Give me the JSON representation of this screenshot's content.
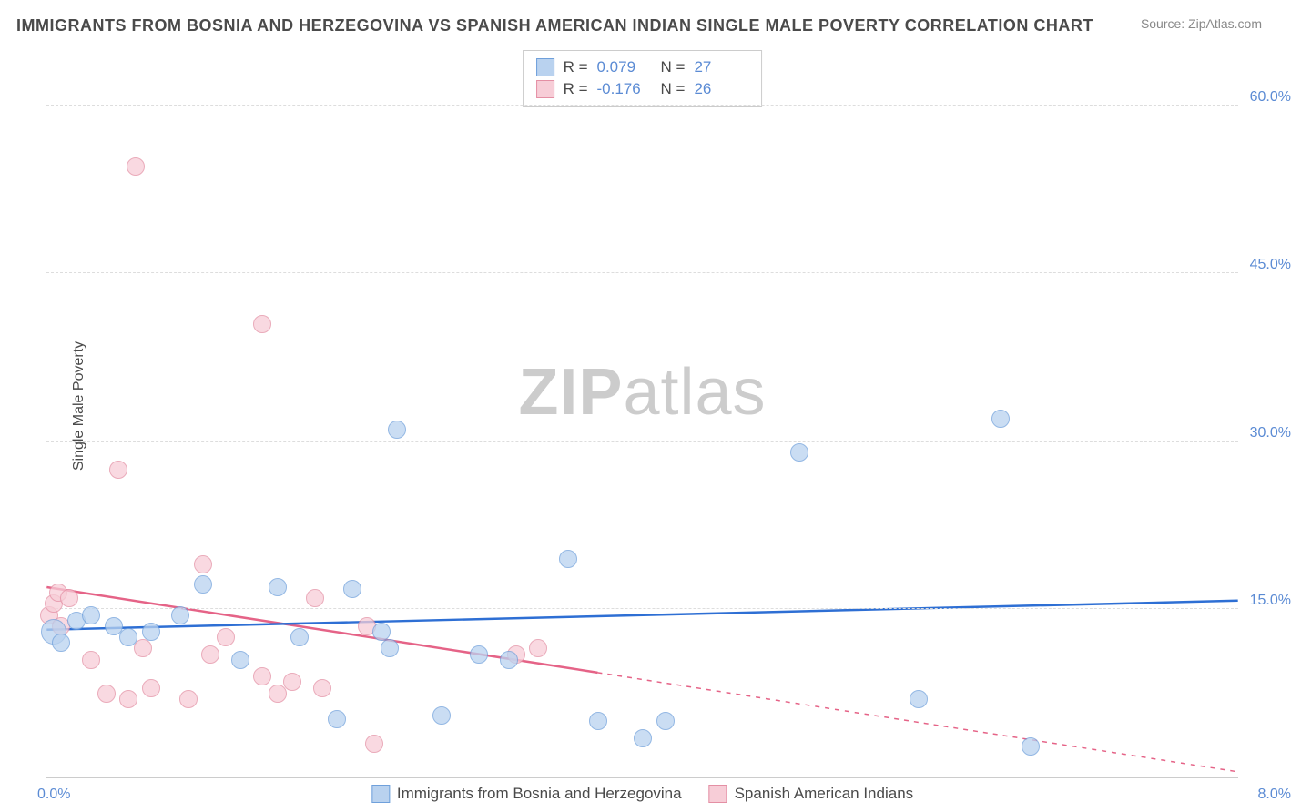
{
  "title": "IMMIGRANTS FROM BOSNIA AND HERZEGOVINA VS SPANISH AMERICAN INDIAN SINGLE MALE POVERTY CORRELATION CHART",
  "source": "Source: ZipAtlas.com",
  "watermark_bold": "ZIP",
  "watermark_light": "atlas",
  "y_axis_title": "Single Male Poverty",
  "colors": {
    "series_a_fill": "#b9d2ef",
    "series_a_stroke": "#6fa0db",
    "series_a_line": "#2e6fd4",
    "series_b_fill": "#f7cdd7",
    "series_b_stroke": "#e48fa4",
    "series_b_line": "#e56387",
    "grid": "#dddddd",
    "axis": "#cccccc",
    "tick_text": "#5b8bd4",
    "title_text": "#4a4a4a"
  },
  "chart": {
    "type": "scatter",
    "xlim": [
      0.0,
      8.0
    ],
    "ylim": [
      0.0,
      65.0
    ],
    "yticks": [
      {
        "v": 15.0,
        "label": "15.0%"
      },
      {
        "v": 30.0,
        "label": "30.0%"
      },
      {
        "v": 45.0,
        "label": "45.0%"
      },
      {
        "v": 60.0,
        "label": "60.0%"
      }
    ],
    "xticks": [
      {
        "v": 0.0,
        "label": "0.0%"
      },
      {
        "v": 8.0,
        "label": "8.0%"
      }
    ],
    "point_radius": 10,
    "point_opacity": 0.75,
    "line_width": 2.5,
    "title_fontsize": 18,
    "tick_fontsize": 16
  },
  "stats": {
    "a": {
      "R_label": "R =",
      "R": "0.079",
      "N_label": "N =",
      "N": "27"
    },
    "b": {
      "R_label": "R =",
      "R": "-0.176",
      "N_label": "N =",
      "N": "26"
    }
  },
  "series_legend": {
    "a": "Immigrants from Bosnia and Herzegovina",
    "b": "Spanish American Indians"
  },
  "series_a": {
    "trend": {
      "x1": 0.0,
      "y1": 13.2,
      "x2": 8.0,
      "y2": 15.8,
      "dash_from": null
    },
    "points": [
      {
        "x": 0.05,
        "y": 13.0,
        "r": 14
      },
      {
        "x": 0.1,
        "y": 12.0
      },
      {
        "x": 0.2,
        "y": 14.0
      },
      {
        "x": 0.3,
        "y": 14.5
      },
      {
        "x": 0.45,
        "y": 13.5
      },
      {
        "x": 0.55,
        "y": 12.5
      },
      {
        "x": 0.7,
        "y": 13.0
      },
      {
        "x": 0.9,
        "y": 14.5
      },
      {
        "x": 1.05,
        "y": 17.2
      },
      {
        "x": 1.3,
        "y": 10.5
      },
      {
        "x": 1.55,
        "y": 17.0
      },
      {
        "x": 1.7,
        "y": 12.5
      },
      {
        "x": 1.95,
        "y": 5.2
      },
      {
        "x": 2.05,
        "y": 16.8
      },
      {
        "x": 2.25,
        "y": 13.0
      },
      {
        "x": 2.3,
        "y": 11.5
      },
      {
        "x": 2.35,
        "y": 31.0
      },
      {
        "x": 2.65,
        "y": 5.5
      },
      {
        "x": 2.9,
        "y": 11.0
      },
      {
        "x": 3.1,
        "y": 10.5
      },
      {
        "x": 3.5,
        "y": 19.5
      },
      {
        "x": 3.7,
        "y": 5.0
      },
      {
        "x": 4.0,
        "y": 3.5
      },
      {
        "x": 4.15,
        "y": 5.0
      },
      {
        "x": 5.05,
        "y": 29.0
      },
      {
        "x": 5.85,
        "y": 7.0
      },
      {
        "x": 6.4,
        "y": 32.0
      },
      {
        "x": 6.6,
        "y": 2.8
      }
    ]
  },
  "series_b": {
    "trend": {
      "x1": 0.0,
      "y1": 17.0,
      "x2": 8.0,
      "y2": 0.5,
      "dash_from": 3.7
    },
    "points": [
      {
        "x": 0.02,
        "y": 14.5
      },
      {
        "x": 0.05,
        "y": 15.5
      },
      {
        "x": 0.08,
        "y": 16.5
      },
      {
        "x": 0.1,
        "y": 13.5
      },
      {
        "x": 0.15,
        "y": 16.0
      },
      {
        "x": 0.3,
        "y": 10.5
      },
      {
        "x": 0.4,
        "y": 7.5
      },
      {
        "x": 0.48,
        "y": 27.5
      },
      {
        "x": 0.55,
        "y": 7.0
      },
      {
        "x": 0.6,
        "y": 54.5
      },
      {
        "x": 0.65,
        "y": 11.5
      },
      {
        "x": 0.7,
        "y": 8.0
      },
      {
        "x": 0.95,
        "y": 7.0
      },
      {
        "x": 1.05,
        "y": 19.0
      },
      {
        "x": 1.1,
        "y": 11.0
      },
      {
        "x": 1.2,
        "y": 12.5
      },
      {
        "x": 1.45,
        "y": 40.5
      },
      {
        "x": 1.45,
        "y": 9.0
      },
      {
        "x": 1.55,
        "y": 7.5
      },
      {
        "x": 1.65,
        "y": 8.5
      },
      {
        "x": 1.8,
        "y": 16.0
      },
      {
        "x": 1.85,
        "y": 8.0
      },
      {
        "x": 2.15,
        "y": 13.5
      },
      {
        "x": 2.2,
        "y": 3.0
      },
      {
        "x": 3.15,
        "y": 11.0
      },
      {
        "x": 3.3,
        "y": 11.5
      }
    ]
  }
}
